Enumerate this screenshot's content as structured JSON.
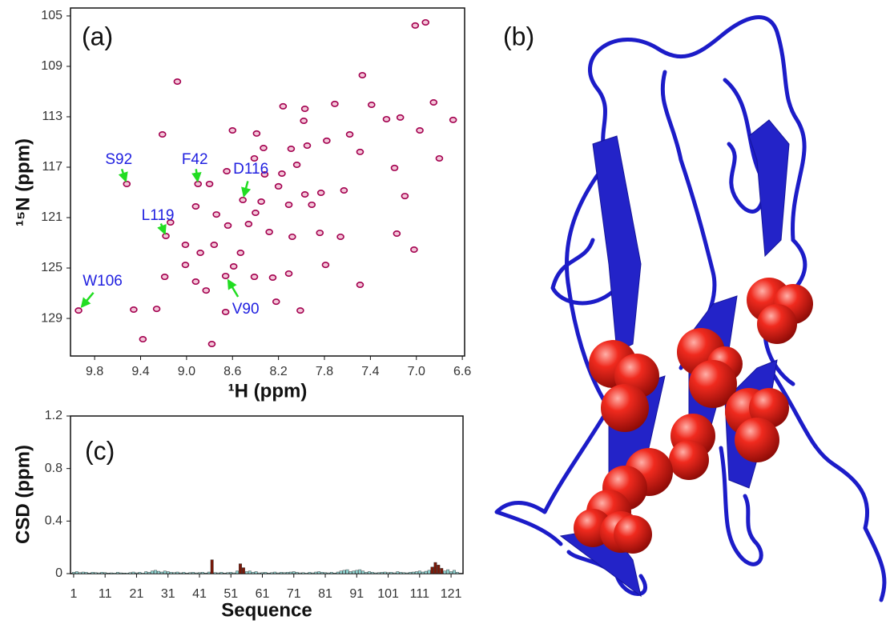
{
  "chart_data": [
    {
      "type": "scatter",
      "title": "(a)",
      "x_label": "¹H (ppm)",
      "y_label": "¹⁵N (ppm)",
      "color": "#a3004f",
      "xlim": [
        10.01,
        6.58
      ],
      "ylim": [
        131.98,
        104.37
      ],
      "xticks": [
        9.8,
        9.4,
        {
          "value": 9,
          "label": "9.0"
        },
        8.6,
        8.2,
        7.8,
        7.4,
        {
          "value": 7,
          "label": "7.0"
        },
        6.6
      ],
      "yticks": [
        105,
        109,
        113,
        117,
        121,
        125,
        129
      ],
      "x": [
        6.92,
        7.01,
        9.08,
        7.47,
        6.85,
        6.68,
        8.16,
        7.97,
        7.71,
        7.39,
        7.26,
        7.14,
        6.97,
        7.98,
        9.21,
        8.6,
        8.39,
        7.58,
        7.78,
        8.09,
        8.33,
        7.95,
        6.8,
        7.19,
        7.49,
        9.52,
        8.9,
        8.41,
        8.04,
        8.51,
        8.65,
        8.8,
        8.32,
        8.17,
        8.92,
        8.2,
        7.97,
        7.83,
        7.63,
        7.91,
        8.11,
        7.1,
        8.35,
        8.4,
        8.74,
        8.64,
        8.46,
        8.76,
        8.28,
        8.08,
        7.84,
        7.66,
        7.02,
        7.17,
        9.18,
        9.01,
        8.88,
        9.01,
        8.53,
        8.59,
        8.41,
        8.25,
        8.66,
        9.19,
        8.92,
        8.83,
        8.22,
        8.01,
        9.26,
        9.46,
        9.94,
        8.66,
        8.78,
        9.38,
        7.79,
        7.49,
        8.11,
        9.14
      ],
      "values": [
        105.51,
        105.76,
        110.21,
        109.7,
        111.86,
        113.25,
        112.17,
        112.37,
        111.98,
        112.05,
        113.19,
        113.06,
        114.08,
        113.32,
        114.4,
        114.08,
        114.33,
        114.4,
        114.9,
        115.54,
        115.48,
        115.29,
        116.3,
        117.06,
        115.79,
        118.33,
        118.33,
        116.3,
        116.81,
        119.6,
        117.32,
        118.33,
        117.57,
        117.51,
        120.11,
        118.52,
        119.16,
        119.03,
        118.84,
        119.98,
        119.98,
        119.29,
        119.73,
        120.62,
        120.75,
        121.63,
        121.51,
        123.16,
        122.14,
        122.52,
        122.21,
        122.52,
        123.54,
        122.27,
        122.46,
        123.16,
        123.79,
        124.75,
        123.79,
        124.87,
        125.7,
        125.76,
        125.63,
        125.7,
        126.08,
        126.78,
        127.67,
        128.37,
        128.24,
        128.3,
        128.37,
        128.49,
        131.03,
        130.65,
        124.75,
        126.33,
        125.44,
        121.38
      ],
      "annotations": [
        {
          "text": "S92",
          "x": 9.52,
          "y": 118.33
        },
        {
          "text": "F42",
          "x": 8.9,
          "y": 118.33
        },
        {
          "text": "D116",
          "x": 8.51,
          "y": 119.6
        },
        {
          "text": "L119",
          "x": 9.18,
          "y": 122.46
        },
        {
          "text": "W106",
          "x": 9.94,
          "y": 128.37
        },
        {
          "text": "V90",
          "x": 8.66,
          "y": 125.63
        }
      ]
    },
    {
      "type": "bar",
      "title": "(c)",
      "x_label": "Sequence",
      "y_label": "CSD (ppm)",
      "xlim": [
        0,
        124.8
      ],
      "ylim": [
        0,
        1.2
      ],
      "xticks": [
        1,
        11,
        21,
        31,
        41,
        51,
        61,
        71,
        81,
        91,
        101,
        111,
        121
      ],
      "yticks": [
        0,
        0.4,
        0.8,
        1.2
      ],
      "x": [
        1,
        2,
        3,
        4,
        5,
        6,
        7,
        8,
        9,
        10,
        11,
        12,
        13,
        14,
        15,
        16,
        17,
        18,
        19,
        20,
        21,
        22,
        23,
        24,
        25,
        26,
        27,
        28,
        29,
        30,
        31,
        32,
        33,
        34,
        35,
        36,
        37,
        38,
        39,
        40,
        41,
        42,
        43,
        44,
        45,
        46,
        47,
        48,
        49,
        50,
        51,
        52,
        53,
        54,
        55,
        56,
        57,
        58,
        59,
        60,
        61,
        62,
        63,
        64,
        65,
        66,
        67,
        68,
        69,
        70,
        71,
        72,
        73,
        74,
        75,
        76,
        77,
        78,
        79,
        80,
        81,
        82,
        83,
        84,
        85,
        86,
        87,
        88,
        89,
        90,
        91,
        92,
        93,
        94,
        95,
        96,
        97,
        98,
        99,
        100,
        101,
        102,
        103,
        104,
        105,
        106,
        107,
        108,
        109,
        110,
        111,
        112,
        113,
        114,
        115,
        116,
        117,
        118,
        119,
        120,
        121,
        122,
        123
      ],
      "series": [
        {
          "color": "#8fd3d0",
          "values": [
            0.01,
            0.015,
            0.008,
            0.012,
            0.01,
            0.005,
            0.01,
            0.008,
            0.006,
            0.01,
            0.008,
            0.005,
            0.006,
            0.004,
            0.01,
            0.006,
            0.005,
            0.004,
            0.008,
            0.012,
            0.006,
            0.01,
            0.004,
            0.015,
            0.01,
            0.02,
            0.025,
            0.018,
            0.012,
            0.02,
            0.015,
            0.01,
            0.008,
            0.012,
            0.006,
            0.01,
            0.005,
            0.008,
            0.01,
            0.006,
            0.008,
            0.01,
            0.005,
            0.012,
            null,
            0.008,
            0.006,
            0.01,
            0.005,
            0.008,
            0.01,
            0.006,
            0.02,
            null,
            null,
            0.015,
            0.02,
            0.01,
            0.015,
            0.006,
            0.008,
            0.01,
            0.005,
            0.008,
            0.012,
            0.006,
            0.01,
            0.008,
            0.01,
            0.012,
            0.015,
            0.01,
            0.006,
            0.008,
            0.004,
            0.01,
            0.006,
            0.012,
            0.015,
            0.01,
            0.008,
            0.006,
            0.01,
            0.005,
            0.012,
            0.02,
            0.025,
            0.03,
            0.015,
            0.02,
            0.025,
            0.03,
            0.02,
            0.01,
            0.015,
            0.01,
            0.006,
            0.008,
            0.01,
            0.012,
            0.008,
            0.01,
            0.006,
            0.015,
            0.01,
            0.008,
            0.006,
            0.01,
            0.012,
            0.015,
            0.02,
            0.012,
            0.018,
            0.025,
            null,
            null,
            null,
            null,
            0.02,
            0.03,
            0.015,
            0.025,
            0.01
          ]
        },
        {
          "color": "#7a1a0a",
          "values": [
            null,
            null,
            null,
            null,
            null,
            null,
            null,
            null,
            null,
            null,
            null,
            null,
            null,
            null,
            null,
            null,
            null,
            null,
            null,
            null,
            null,
            null,
            null,
            null,
            null,
            null,
            null,
            null,
            null,
            null,
            null,
            null,
            null,
            null,
            null,
            null,
            null,
            null,
            null,
            null,
            null,
            null,
            null,
            null,
            0.105,
            null,
            null,
            null,
            null,
            null,
            null,
            null,
            null,
            0.075,
            0.045,
            null,
            null,
            null,
            null,
            null,
            null,
            null,
            null,
            null,
            null,
            null,
            null,
            null,
            null,
            null,
            null,
            null,
            null,
            null,
            null,
            null,
            null,
            null,
            null,
            null,
            null,
            null,
            null,
            null,
            null,
            null,
            null,
            null,
            null,
            null,
            null,
            null,
            null,
            null,
            null,
            null,
            null,
            null,
            null,
            null,
            null,
            null,
            null,
            null,
            null,
            null,
            null,
            null,
            null,
            null,
            null,
            null,
            null,
            null,
            0.05,
            0.085,
            0.065,
            0.04,
            null,
            null,
            null,
            null,
            null
          ]
        }
      ]
    }
  ],
  "structure": {
    "label": "(b)"
  }
}
